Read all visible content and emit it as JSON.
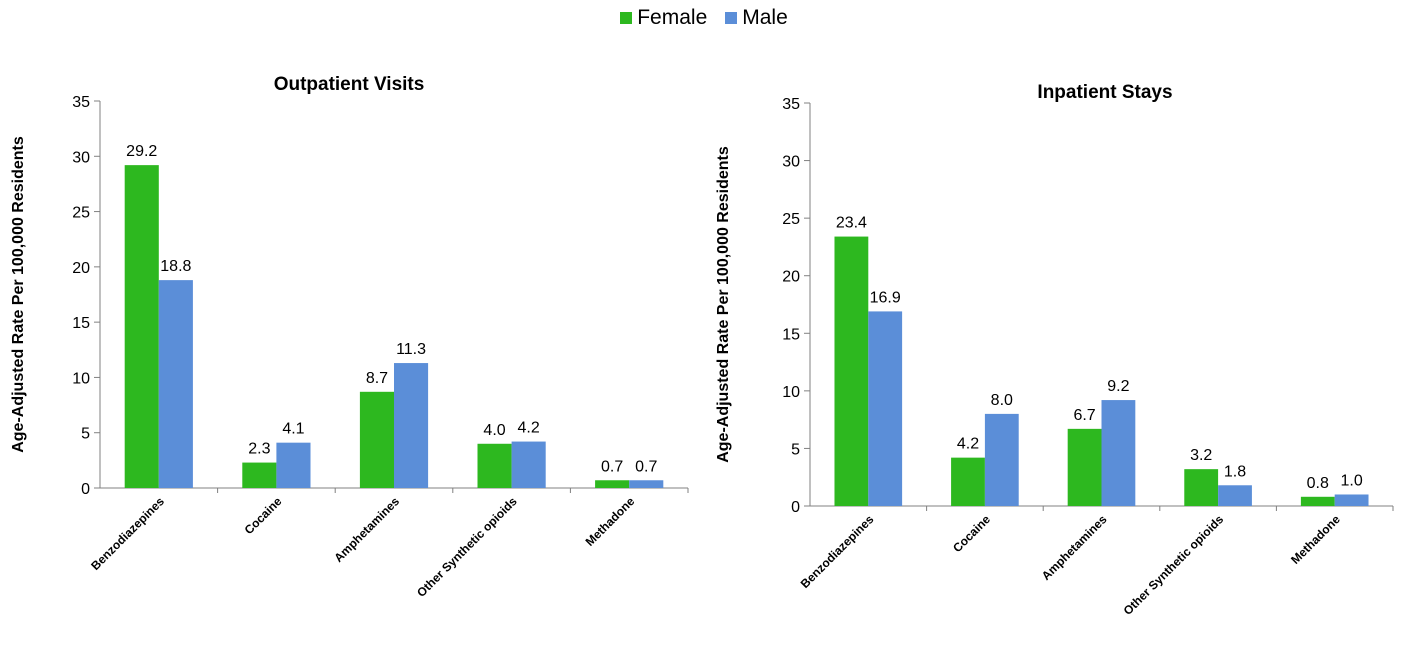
{
  "legend": {
    "items": [
      {
        "label": "Female",
        "color": "#2db81f"
      },
      {
        "label": "Male",
        "color": "#5b8ed8"
      }
    ]
  },
  "chart_data": [
    {
      "type": "bar",
      "title": "Outpatient Visits",
      "ylabel": "Age-Adjusted Rate Per 100,000 Residents",
      "xlabel": "",
      "ylim": [
        0,
        35
      ],
      "yticks": [
        "0",
        "5",
        "10",
        "15",
        "20",
        "25",
        "30",
        "35"
      ],
      "categories": [
        "Benzodiazepines",
        "Cocaine",
        "Amphetamines",
        "Other Synthetic opioids",
        "Methadone"
      ],
      "series": [
        {
          "name": "Female",
          "color": "#2db81f",
          "values": [
            29.2,
            2.3,
            8.7,
            4.0,
            0.7
          ],
          "labels": [
            "29.2",
            "2.3",
            "8.7",
            "4.0",
            "0.7"
          ]
        },
        {
          "name": "Male",
          "color": "#5b8ed8",
          "values": [
            18.8,
            4.1,
            11.3,
            4.2,
            0.7
          ],
          "labels": [
            "18.8",
            "4.1",
            "11.3",
            "4.2",
            "0.7"
          ]
        }
      ],
      "grid": false
    },
    {
      "type": "bar",
      "title": "Inpatient Stays",
      "ylabel": "Age-Adjusted Rate Per 100,000 Residents",
      "xlabel": "",
      "ylim": [
        0,
        35
      ],
      "yticks": [
        "0",
        "5",
        "10",
        "15",
        "20",
        "25",
        "30",
        "35"
      ],
      "categories": [
        "Benzodiazepines",
        "Cocaine",
        "Amphetamines",
        "Other Synthetic opioids",
        "Methadone"
      ],
      "series": [
        {
          "name": "Female",
          "color": "#2db81f",
          "values": [
            23.4,
            4.2,
            6.7,
            3.2,
            0.8
          ],
          "labels": [
            "23.4",
            "4.2",
            "6.7",
            "3.2",
            "0.8"
          ]
        },
        {
          "name": "Male",
          "color": "#5b8ed8",
          "values": [
            16.9,
            8.0,
            9.2,
            1.8,
            1.0
          ],
          "labels": [
            "16.9",
            "8.0",
            "9.2",
            "1.8",
            "1.0"
          ]
        }
      ],
      "grid": false
    }
  ]
}
